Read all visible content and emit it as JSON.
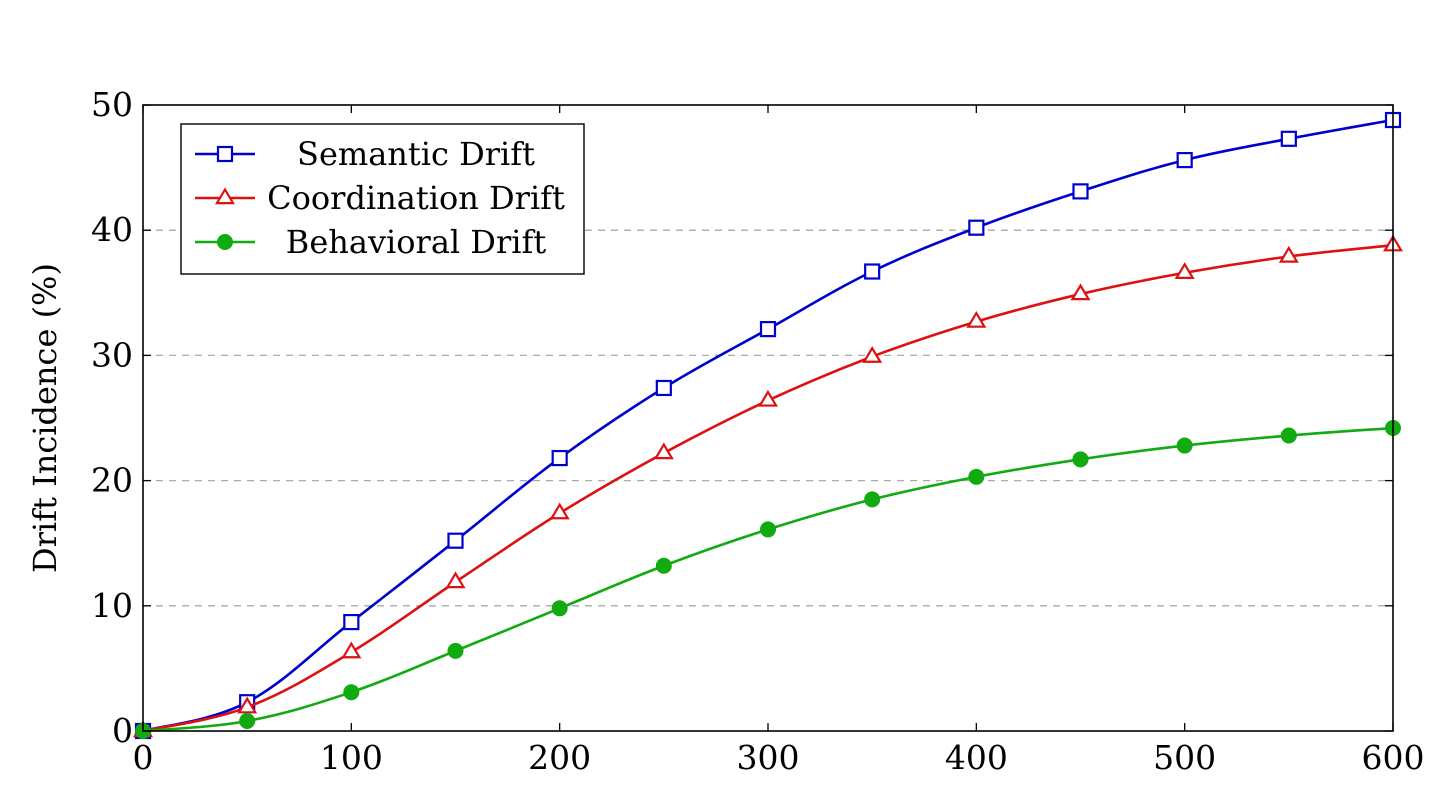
{
  "chart_data": {
    "type": "line",
    "title": "",
    "xlabel": "",
    "ylabel": "Drift Incidence (%)",
    "xlim": [
      0,
      600
    ],
    "ylim": [
      0,
      50
    ],
    "x_ticks": [
      0,
      100,
      200,
      300,
      400,
      500,
      600
    ],
    "y_ticks": [
      0,
      10,
      20,
      30,
      40,
      50
    ],
    "grid": "horizontal-dashed",
    "legend_position": "top-left",
    "x": [
      0,
      50,
      100,
      150,
      200,
      250,
      300,
      350,
      400,
      450,
      500,
      550,
      600
    ],
    "series": [
      {
        "name": "Semantic Drift",
        "color": "#0000cc",
        "marker": "square-open",
        "values": [
          0,
          2.3,
          8.7,
          15.2,
          21.8,
          27.4,
          32.1,
          36.7,
          40.2,
          43.1,
          45.6,
          47.3,
          48.8
        ]
      },
      {
        "name": "Coordination Drift",
        "color": "#dd1111",
        "marker": "triangle-open",
        "values": [
          0,
          1.9,
          6.3,
          11.9,
          17.4,
          22.2,
          26.4,
          29.9,
          32.7,
          34.9,
          36.6,
          37.9,
          38.8
        ]
      },
      {
        "name": "Behavioral Drift",
        "color": "#11aa11",
        "marker": "circle-filled",
        "values": [
          0,
          0.8,
          3.1,
          6.4,
          9.8,
          13.2,
          16.1,
          18.5,
          20.3,
          21.7,
          22.8,
          23.6,
          24.2
        ]
      }
    ]
  }
}
